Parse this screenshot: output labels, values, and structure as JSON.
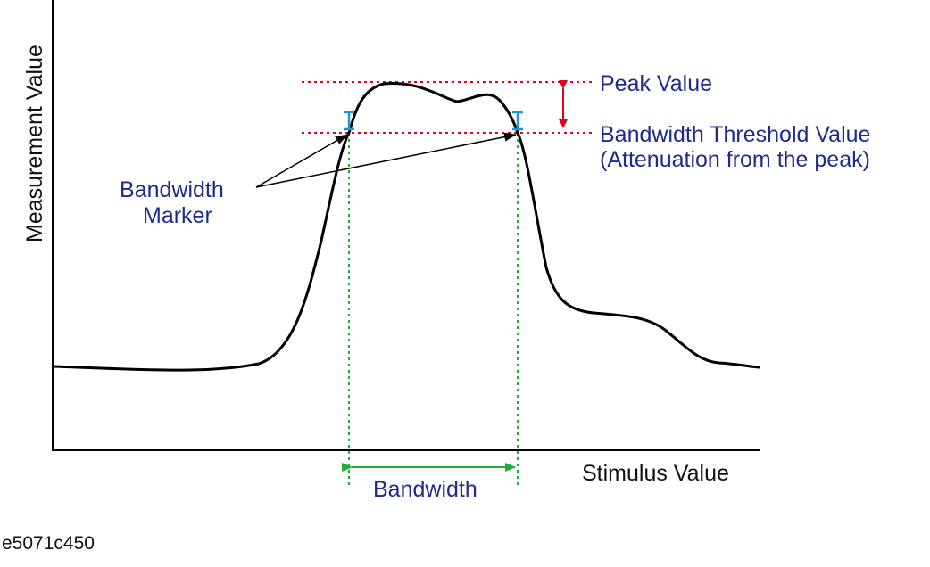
{
  "diagram": {
    "axes": {
      "y_label": "Measurement Value",
      "x_label": "Stimulus Value"
    },
    "labels": {
      "peak_value": "Peak Value",
      "threshold_line1": "Bandwidth Threshold Value",
      "threshold_line2": "(Attenuation from the peak)",
      "marker_line1": "Bandwidth",
      "marker_line2": "Marker",
      "bandwidth": "Bandwidth"
    },
    "colors": {
      "curve": "#000000",
      "reference_lines": "#e8001f",
      "bandwidth_guides": "#1fae3a",
      "marker": "#1b9ad6",
      "label_text": "#1f2a8c"
    }
  },
  "image_id": "e5071c450"
}
